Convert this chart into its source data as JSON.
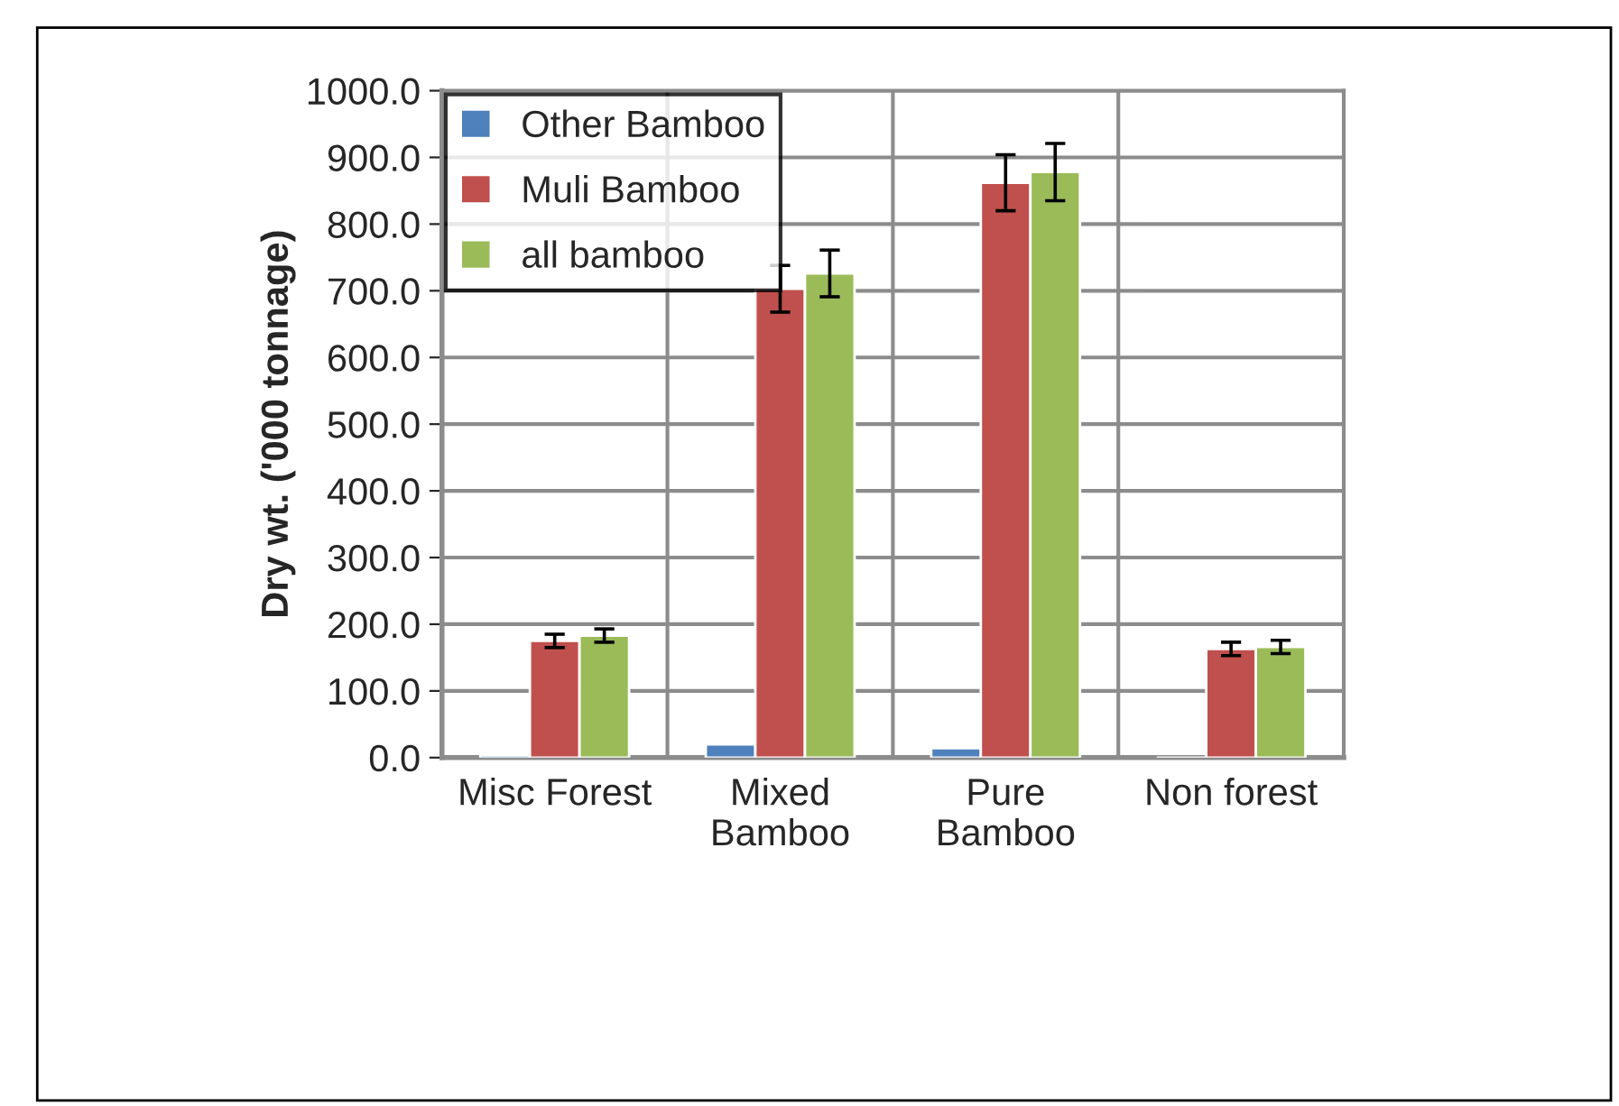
{
  "chart_data": {
    "type": "bar",
    "ylabel": "Dry wt. ('000 tonnage)",
    "categories": [
      "Misc Forest",
      "Mixed\nBamboo",
      "Pure\nBamboo",
      "Non forest"
    ],
    "series": [
      {
        "name": "Other Bamboo",
        "color": "#4f81bd",
        "values": [
          4,
          20,
          14,
          null
        ],
        "errors": [
          null,
          null,
          null,
          null
        ]
      },
      {
        "name": "Muli Bamboo",
        "color": "#c0504d",
        "values": [
          175,
          703,
          862,
          163
        ],
        "errors": [
          10,
          35,
          42,
          10
        ]
      },
      {
        "name": "all bamboo",
        "color": "#9bbb59",
        "values": [
          183,
          726,
          878,
          166
        ],
        "errors": [
          10,
          35,
          43,
          10
        ]
      }
    ],
    "ylim": [
      0,
      1000
    ],
    "yticks": [
      {
        "value": 0,
        "label": "0.0"
      },
      {
        "value": 100,
        "label": "100.0"
      },
      {
        "value": 200,
        "label": "200.0"
      },
      {
        "value": 300,
        "label": "300.0"
      },
      {
        "value": 400,
        "label": "400.0"
      },
      {
        "value": 500,
        "label": "500.0"
      },
      {
        "value": 600,
        "label": "600.0"
      },
      {
        "value": 700,
        "label": "700.0"
      },
      {
        "value": 800,
        "label": "800.0"
      },
      {
        "value": 900,
        "label": "900.0"
      },
      {
        "value": 1000,
        "label": "1000.0"
      }
    ],
    "grid": true,
    "legend": "top left"
  }
}
